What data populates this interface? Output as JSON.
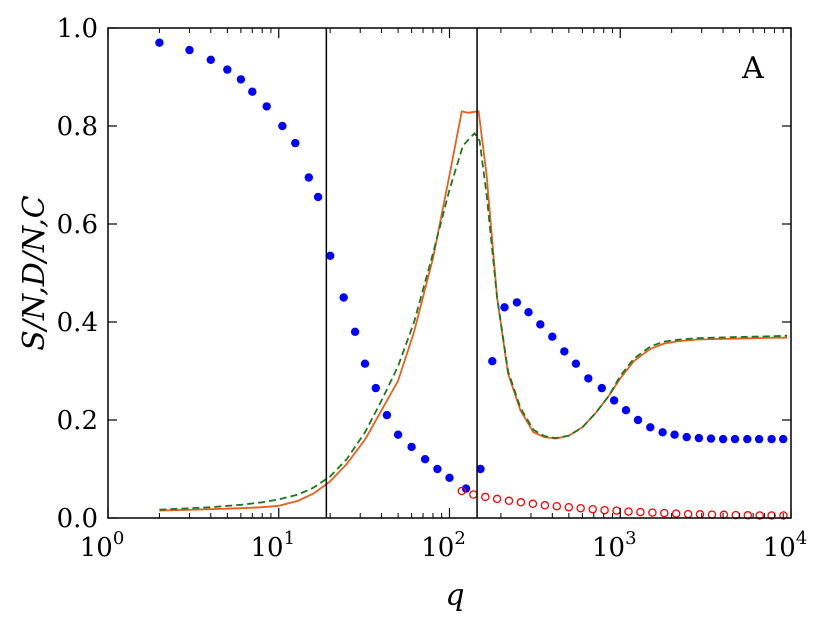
{
  "chart_data": {
    "type": "scatter",
    "panel_label": "A",
    "xlabel": "q",
    "ylabel": "S/N,D/N,C",
    "xscale": "log",
    "xlim": [
      1,
      10000
    ],
    "ylim": [
      0.0,
      1.0
    ],
    "x_ticks": [
      {
        "value": 1,
        "base": "10",
        "exp": "0"
      },
      {
        "value": 10,
        "base": "10",
        "exp": "1"
      },
      {
        "value": 100,
        "base": "10",
        "exp": "2"
      },
      {
        "value": 1000,
        "base": "10",
        "exp": "3"
      },
      {
        "value": 10000,
        "base": "10",
        "exp": "4"
      }
    ],
    "y_ticks": [
      "0.0",
      "0.2",
      "0.4",
      "0.6",
      "0.8",
      "1.0"
    ],
    "grid": false,
    "vertical_lines": [
      19,
      145
    ],
    "colors": {
      "filled": "#0000ff",
      "open": "#ff0000",
      "solid": "#e8601c",
      "dashed": "#1a7a1a",
      "vline": "#000000"
    },
    "series": [
      {
        "style": "filled-circles",
        "color": "#0000ff",
        "x": [
          2,
          3,
          4,
          5,
          6,
          7,
          8.5,
          10.5,
          12.5,
          15,
          17,
          20,
          24,
          28,
          32,
          37,
          43,
          50,
          60,
          72,
          85,
          100,
          125,
          152,
          178,
          210,
          248,
          290,
          340,
          400,
          470,
          550,
          650,
          780,
          920,
          1080,
          1270,
          1500,
          1770,
          2080,
          2450,
          2890,
          3400,
          4000,
          4700,
          5550,
          6500,
          7700,
          9000
        ],
        "y": [
          0.97,
          0.955,
          0.935,
          0.915,
          0.895,
          0.87,
          0.84,
          0.8,
          0.765,
          0.695,
          0.655,
          0.535,
          0.45,
          0.38,
          0.315,
          0.265,
          0.21,
          0.17,
          0.145,
          0.12,
          0.1,
          0.082,
          0.06,
          0.1,
          0.32,
          0.43,
          0.44,
          0.42,
          0.395,
          0.37,
          0.34,
          0.315,
          0.285,
          0.265,
          0.24,
          0.22,
          0.2,
          0.185,
          0.175,
          0.17,
          0.165,
          0.163,
          0.162,
          0.161,
          0.161,
          0.161,
          0.161,
          0.161,
          0.161
        ]
      },
      {
        "style": "open-circles",
        "color": "#ff0000",
        "x": [
          118,
          138,
          162,
          190,
          223,
          262,
          308,
          362,
          425,
          500,
          587,
          690,
          810,
          952,
          1118,
          1313,
          1542,
          1811,
          2127,
          2498,
          2933,
          3445,
          4046,
          4752,
          5581,
          6554,
          7697,
          9040
        ],
        "y": [
          0.055,
          0.048,
          0.043,
          0.039,
          0.035,
          0.032,
          0.029,
          0.026,
          0.024,
          0.022,
          0.02,
          0.018,
          0.016,
          0.015,
          0.013,
          0.012,
          0.011,
          0.01,
          0.009,
          0.008,
          0.0075,
          0.007,
          0.0065,
          0.006,
          0.0055,
          0.005,
          0.005,
          0.005
        ]
      },
      {
        "style": "solid-line",
        "color": "#e8601c",
        "x": [
          2,
          4,
          6,
          8,
          10,
          13,
          16,
          20,
          25,
          32,
          40,
          50,
          62,
          80,
          100,
          118,
          128,
          148,
          165,
          190,
          220,
          260,
          310,
          360,
          420,
          500,
          600,
          720,
          860,
          1000,
          1200,
          1500,
          1800,
          2200,
          2800,
          3500,
          4500,
          6000,
          8000,
          9500
        ],
        "y": [
          0.015,
          0.018,
          0.02,
          0.022,
          0.025,
          0.035,
          0.05,
          0.075,
          0.11,
          0.16,
          0.22,
          0.28,
          0.38,
          0.53,
          0.7,
          0.83,
          0.827,
          0.83,
          0.7,
          0.45,
          0.295,
          0.22,
          0.175,
          0.165,
          0.162,
          0.168,
          0.185,
          0.215,
          0.25,
          0.285,
          0.32,
          0.345,
          0.356,
          0.361,
          0.364,
          0.365,
          0.366,
          0.367,
          0.368,
          0.368
        ]
      },
      {
        "style": "dashed-line",
        "color": "#1a7a1a",
        "x": [
          2,
          4,
          6,
          8,
          10,
          13,
          16,
          20,
          25,
          32,
          40,
          50,
          62,
          80,
          100,
          120,
          140,
          150,
          165,
          190,
          220,
          260,
          310,
          360,
          420,
          500,
          600,
          720,
          860,
          1000,
          1200,
          1500,
          1800,
          2200,
          2800,
          3500,
          4500,
          6000,
          8000,
          9500
        ],
        "y": [
          0.017,
          0.022,
          0.027,
          0.032,
          0.038,
          0.048,
          0.062,
          0.085,
          0.12,
          0.175,
          0.24,
          0.31,
          0.4,
          0.54,
          0.67,
          0.76,
          0.785,
          0.77,
          0.66,
          0.45,
          0.3,
          0.225,
          0.18,
          0.167,
          0.163,
          0.168,
          0.185,
          0.215,
          0.25,
          0.29,
          0.325,
          0.35,
          0.36,
          0.364,
          0.367,
          0.368,
          0.369,
          0.37,
          0.371,
          0.372
        ]
      }
    ]
  }
}
